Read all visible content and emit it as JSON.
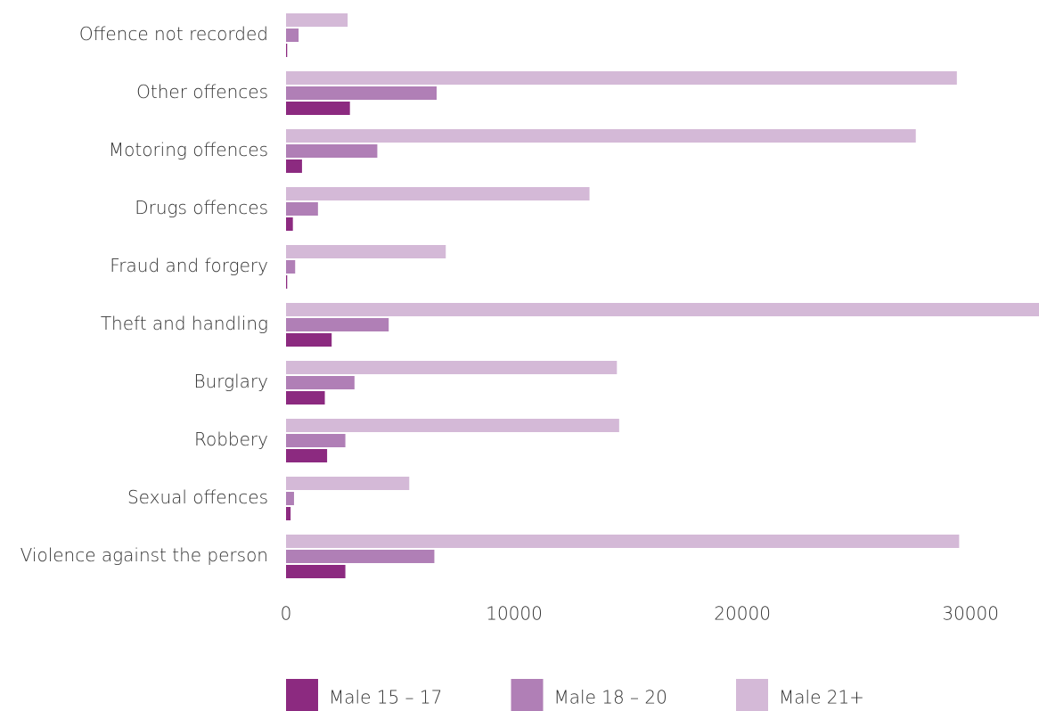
{
  "chart_data": {
    "type": "bar",
    "orientation": "horizontal",
    "categories": [
      "Offence not recorded",
      "Other offences",
      "Motoring offences",
      "Drugs offences",
      "Fraud and forgery",
      "Theft and handling",
      "Burglary",
      "Robbery",
      "Sexual offences",
      "Violence against the person"
    ],
    "series": [
      {
        "name": "Male 15 – 17",
        "color": "#8c2a80",
        "values": [
          50,
          2800,
          700,
          300,
          50,
          2000,
          1700,
          1800,
          200,
          2600
        ]
      },
      {
        "name": "Male 18 – 20",
        "color": "#b07fb6",
        "values": [
          550,
          6600,
          4000,
          1400,
          400,
          4500,
          3000,
          2600,
          350,
          6500
        ]
      },
      {
        "name": "Male 21+",
        "color": "#d4b9d7",
        "values": [
          2700,
          29400,
          27600,
          13300,
          7000,
          33000,
          14500,
          14600,
          5400,
          29500
        ]
      }
    ],
    "xlim": [
      0,
      33000
    ],
    "xticks": [
      0,
      10000,
      20000,
      30000
    ],
    "grid": false,
    "legend": "bottom"
  }
}
